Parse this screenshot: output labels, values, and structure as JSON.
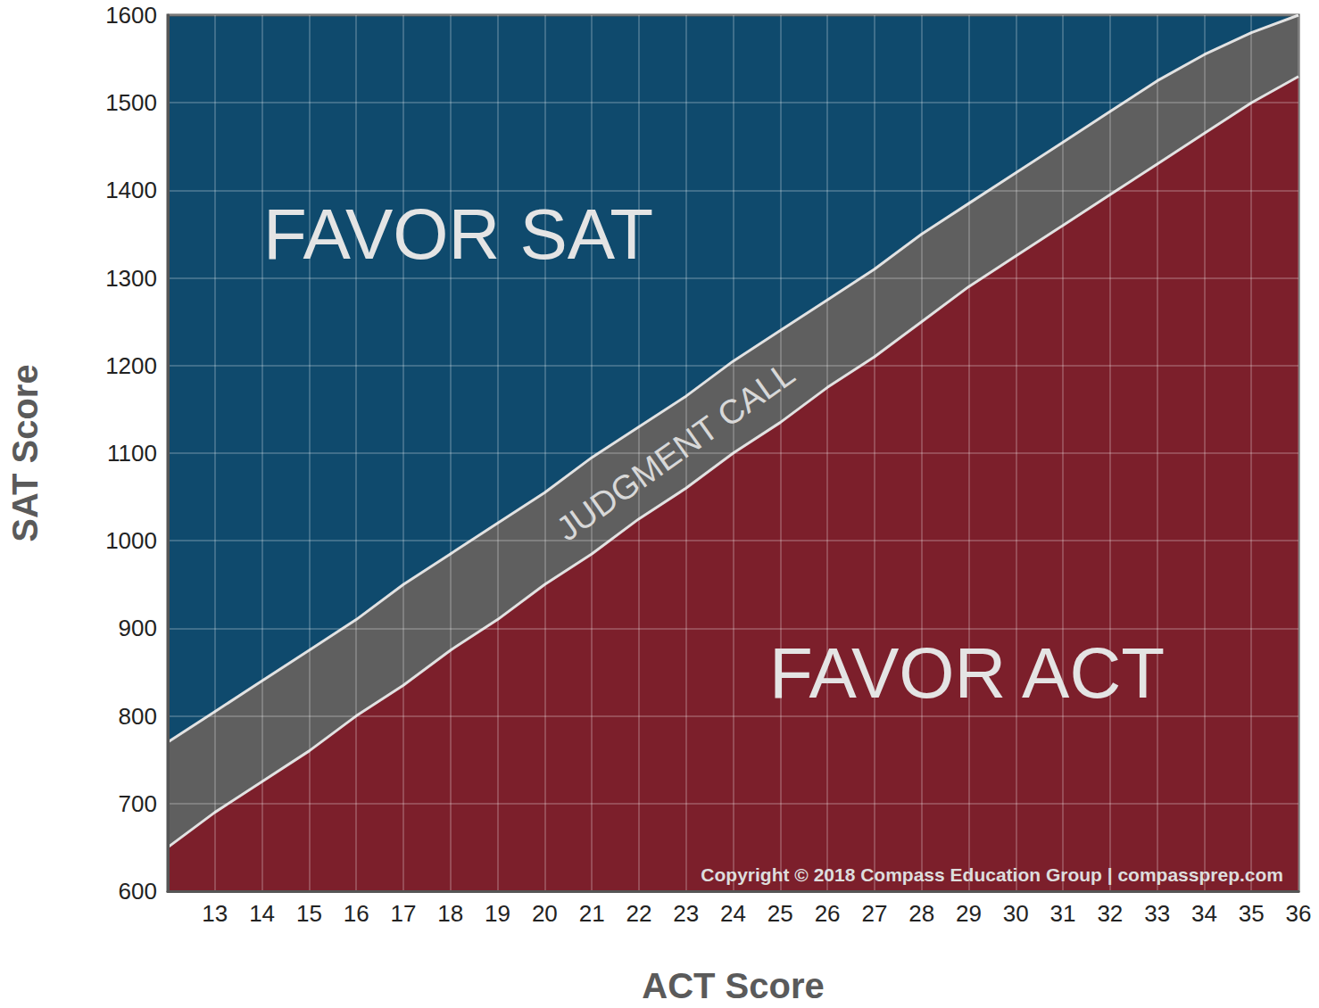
{
  "chart_data": {
    "type": "area",
    "x_label": "ACT Score",
    "y_label": "SAT Score",
    "color": "#0f4a6d",
    "grid": true,
    "x": [
      12,
      13,
      14,
      15,
      16,
      17,
      18,
      19,
      20,
      21,
      22,
      23,
      24,
      25,
      26,
      27,
      28,
      29,
      30,
      31,
      32,
      33,
      34,
      35,
      36
    ],
    "series": [
      {
        "color": "#5f5f5f",
        "values": [
          770,
          805,
          840,
          875,
          910,
          950,
          985,
          1020,
          1055,
          1095,
          1130,
          1165,
          1205,
          1240,
          1275,
          1310,
          1350,
          1385,
          1420,
          1455,
          1490,
          1525,
          1555,
          1580,
          1600
        ]
      },
      {
        "color": "#7c1f2b",
        "values": [
          650,
          690,
          725,
          760,
          800,
          835,
          875,
          910,
          950,
          985,
          1025,
          1060,
          1100,
          1135,
          1175,
          1210,
          1250,
          1290,
          1325,
          1360,
          1395,
          1430,
          1465,
          1500,
          1530
        ]
      }
    ],
    "xlim": [
      12,
      36
    ],
    "xticks": [
      13,
      14,
      15,
      16,
      17,
      18,
      19,
      20,
      21,
      22,
      23,
      24,
      25,
      26,
      27,
      28,
      29,
      30,
      31,
      32,
      33,
      34,
      35,
      36
    ],
    "ylim": [
      600,
      1600
    ],
    "yticks": [
      600,
      700,
      800,
      900,
      1000,
      1100,
      1200,
      1300,
      1400,
      1500,
      1600
    ],
    "annotations": [
      "FAVOR SAT",
      "JUDGMENT CALL",
      "FAVOR ACT",
      "Copyright © 2018 Compass Education Group | compassprep.com"
    ]
  }
}
